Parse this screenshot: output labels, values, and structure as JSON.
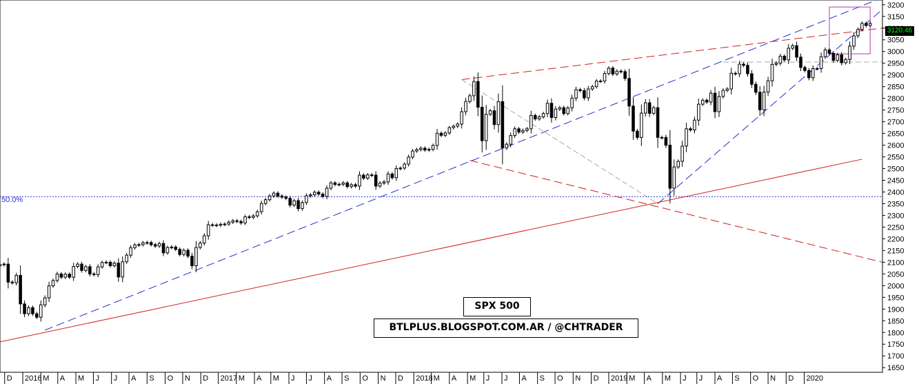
{
  "chart_data": {
    "type": "candlestick",
    "title": "SPX 500",
    "source": "BTLPLUS.BLOGSPOT.COM.AR / @CHTRADER",
    "last_price": "3120.46",
    "fib_level_label": "50.0%",
    "fib_level_value": 2380,
    "ylim": [
      1630,
      3220
    ],
    "y_ticks": [
      3200,
      3150,
      3100,
      3050,
      3000,
      2950,
      2900,
      2850,
      2800,
      2750,
      2700,
      2650,
      2600,
      2550,
      2500,
      2450,
      2400,
      2350,
      2300,
      2250,
      2200,
      2150,
      2100,
      2050,
      2000,
      1950,
      1900,
      1850,
      1800,
      1750,
      1700,
      1650
    ],
    "x_ticks": [
      "D",
      "2016",
      "M",
      "A",
      "M",
      "J",
      "J",
      "A",
      "S",
      "O",
      "N",
      "D",
      "2017",
      "M",
      "A",
      "M",
      "J",
      "J",
      "A",
      "S",
      "O",
      "N",
      "D",
      "2018",
      "M",
      "A",
      "M",
      "J",
      "J",
      "A",
      "S",
      "O",
      "N",
      "D",
      "2019",
      "M",
      "A",
      "M",
      "J",
      "J",
      "A",
      "S",
      "O",
      "N",
      "D",
      "2020"
    ],
    "x_range": [
      "2015-11-23",
      "2020-01-13"
    ],
    "series": [
      {
        "name": "SPX 500",
        "interval": "weekly",
        "start": "2015-11-23",
        "closes": [
          2090,
          2092,
          2015,
          2012,
          2044,
          1922,
          1880,
          1906,
          1880,
          1865,
          1918,
          1948,
          1999,
          2022,
          2050,
          2036,
          2049,
          2036,
          2082,
          2092,
          2065,
          2081,
          2050,
          2047,
          2080,
          2099,
          2100,
          2085,
          2096,
          2037,
          2102,
          2130,
          2162,
          2174,
          2175,
          2183,
          2184,
          2175,
          2169,
          2180,
          2140,
          2163,
          2165,
          2155,
          2133,
          2151,
          2126,
          2085,
          2163,
          2182,
          2213,
          2260,
          2259,
          2258,
          2262,
          2263,
          2271,
          2277,
          2274,
          2268,
          2294,
          2292,
          2298,
          2316,
          2351,
          2367,
          2383,
          2395,
          2383,
          2378,
          2373,
          2344,
          2363,
          2329,
          2355,
          2384,
          2388,
          2399,
          2391,
          2381,
          2416,
          2439,
          2432,
          2433,
          2439,
          2423,
          2431,
          2425,
          2472,
          2459,
          2473,
          2472,
          2425,
          2438,
          2443,
          2477,
          2461,
          2500,
          2502,
          2519,
          2549,
          2575,
          2581,
          2587,
          2579,
          2582,
          2599,
          2651,
          2642,
          2652,
          2675,
          2681,
          2690,
          2743,
          2787,
          2811,
          2872,
          2762,
          2619,
          2732,
          2747,
          2688,
          2786,
          2588,
          2604,
          2641,
          2670,
          2656,
          2663,
          2670,
          2727,
          2712,
          2721,
          2735,
          2779,
          2718,
          2754,
          2760,
          2735,
          2759,
          2801,
          2837,
          2833,
          2802,
          2840,
          2850,
          2874,
          2874,
          2906,
          2929,
          2904,
          2916,
          2914,
          2885,
          2767,
          2660,
          2633,
          2737,
          2781,
          2736,
          2760,
          2633,
          2633,
          2600,
          2416,
          2507,
          2531,
          2596,
          2670,
          2665,
          2707,
          2775,
          2792,
          2784,
          2822,
          2743,
          2808,
          2834,
          2840,
          2907,
          2905,
          2946,
          2941,
          2905,
          2860,
          2826,
          2751,
          2827,
          2875,
          2945,
          2950,
          2980,
          2964,
          3014,
          3025,
          2976,
          2932,
          2919,
          2888,
          2927,
          2927,
          2978,
          3007,
          2992,
          2962,
          2986,
          2952,
          2966,
          3023,
          3067,
          3094,
          3120,
          3111,
          3120
        ]
      }
    ]
  }
}
